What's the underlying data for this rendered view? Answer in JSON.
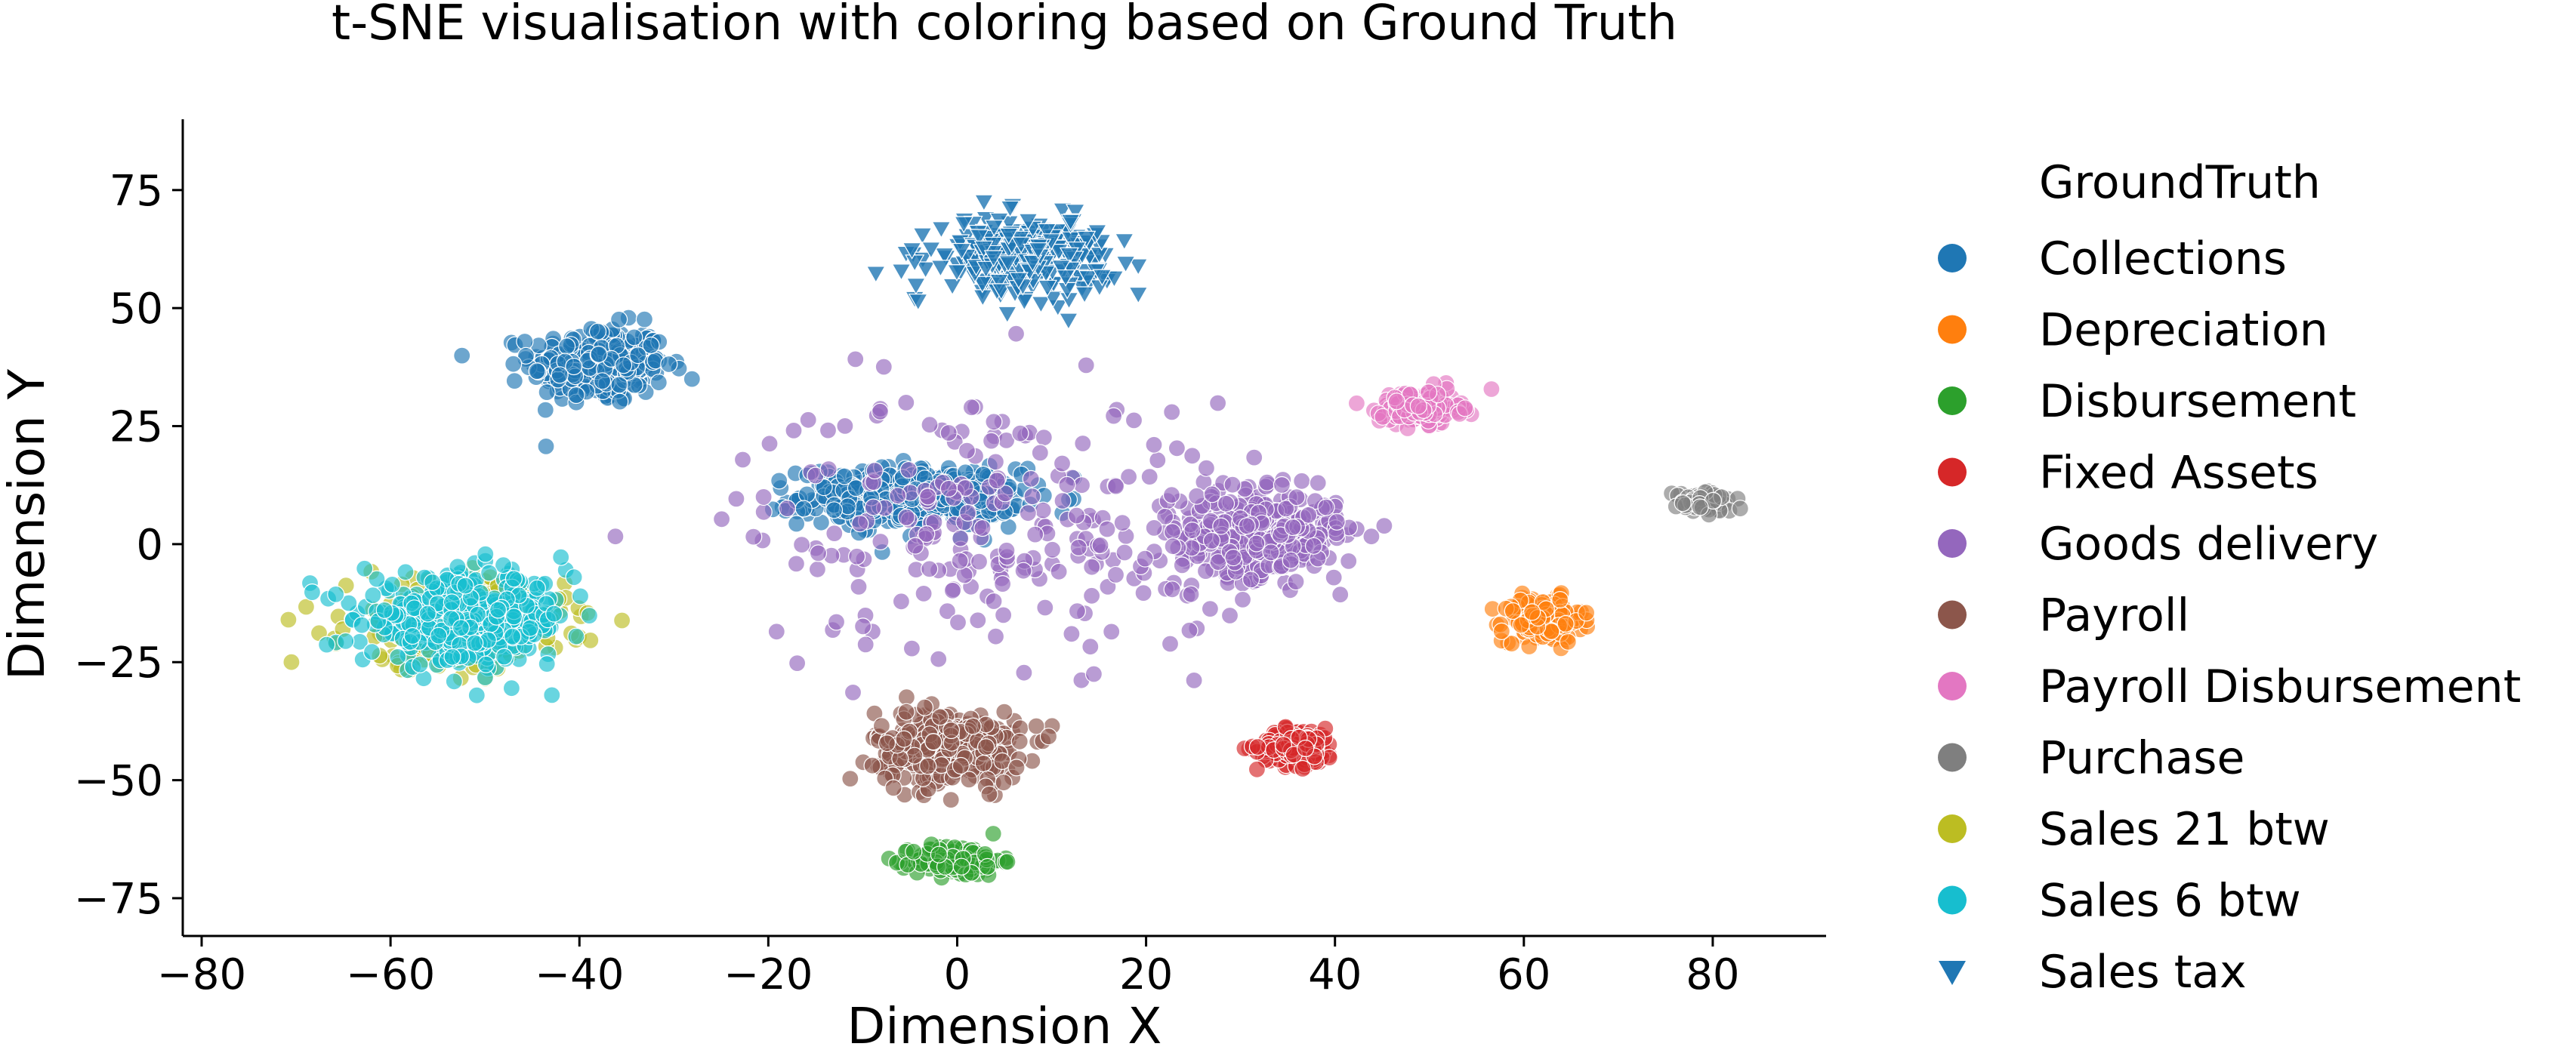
{
  "chart_data": {
    "type": "scatter",
    "title": "t-SNE visualisation with coloring based on Ground Truth",
    "xlabel": "Dimension X",
    "ylabel": "Dimension Y",
    "xlim": [
      -82,
      92
    ],
    "ylim": [
      -83,
      90
    ],
    "xticks": [
      -80,
      -60,
      -40,
      -20,
      0,
      20,
      40,
      60,
      80
    ],
    "yticks": [
      -75,
      -50,
      -25,
      0,
      25,
      50,
      75
    ],
    "xtick_labels": [
      "−80",
      "−60",
      "−40",
      "−20",
      "0",
      "20",
      "40",
      "60",
      "80"
    ],
    "ytick_labels": [
      "−75",
      "−50",
      "−25",
      "0",
      "25",
      "50",
      "75"
    ],
    "grid": false,
    "legend": {
      "title": "GroundTruth",
      "placement": "right-outside"
    },
    "series": [
      {
        "name": "Collections",
        "color": "#1f77b4",
        "marker": "circle",
        "clusters": [
          {
            "center": [
              -38,
              38
            ],
            "spread": [
              6.5,
              7.5
            ],
            "count": 300
          },
          {
            "center": [
              -5,
              10
            ],
            "spread": [
              10.5,
              5.5
            ],
            "count": 400
          }
        ]
      },
      {
        "name": "Depreciation",
        "color": "#ff7f0e",
        "marker": "circle",
        "clusters": [
          {
            "center": [
              62,
              -16
            ],
            "spread": [
              3.8,
              4.2
            ],
            "count": 180
          }
        ]
      },
      {
        "name": "Disbursement",
        "color": "#2ca02c",
        "marker": "circle",
        "clusters": [
          {
            "center": [
              0,
              -67
            ],
            "spread": [
              4.2,
              3.0
            ],
            "count": 140
          }
        ]
      },
      {
        "name": "Fixed Assets",
        "color": "#d62728",
        "marker": "circle",
        "clusters": [
          {
            "center": [
              36,
              -43
            ],
            "spread": [
              3.8,
              3.6
            ],
            "count": 180
          }
        ]
      },
      {
        "name": "Goods delivery",
        "color": "#9467bd",
        "marker": "circle",
        "clusters": [
          {
            "center": [
              32,
              2
            ],
            "spread": [
              7.5,
              8.0
            ],
            "count": 380
          },
          {
            "center": [
              5,
              5
            ],
            "spread": [
              25.0,
              25.0
            ],
            "count": 260
          }
        ]
      },
      {
        "name": "Payroll",
        "color": "#8c564b",
        "marker": "circle",
        "clusters": [
          {
            "center": [
              -1,
              -43
            ],
            "spread": [
              7.0,
              7.0
            ],
            "count": 340
          }
        ]
      },
      {
        "name": "Payroll Disbursement",
        "color": "#e377c2",
        "marker": "circle",
        "clusters": [
          {
            "center": [
              49,
              29
            ],
            "spread": [
              3.8,
              3.2
            ],
            "count": 180
          }
        ]
      },
      {
        "name": "Purchase",
        "color": "#7f7f7f",
        "marker": "circle",
        "clusters": [
          {
            "center": [
              79,
              9
            ],
            "spread": [
              2.8,
              2.0
            ],
            "count": 90
          }
        ]
      },
      {
        "name": "Sales 21 btw",
        "color": "#bcbd22",
        "marker": "circle",
        "clusters": [
          {
            "center": [
              -53,
              -17
            ],
            "spread": [
              10.5,
              8.5
            ],
            "count": 260
          }
        ]
      },
      {
        "name": "Sales 6 btw",
        "color": "#17becf",
        "marker": "circle",
        "clusters": [
          {
            "center": [
              -52,
              -16
            ],
            "spread": [
              10.0,
              8.5
            ],
            "count": 420
          }
        ]
      },
      {
        "name": "Sales tax",
        "color": "#1f77b4",
        "marker": "triangle-down",
        "clusters": [
          {
            "center": [
              7,
              61
            ],
            "spread": [
              8.5,
              7.0
            ],
            "count": 320
          }
        ]
      }
    ]
  }
}
